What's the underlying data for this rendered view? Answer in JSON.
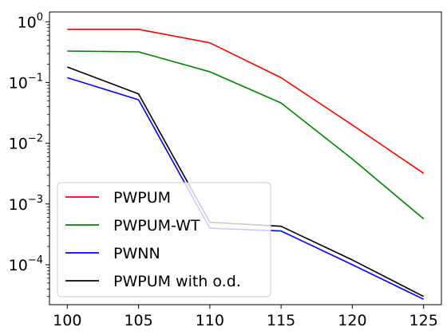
{
  "chart_data": {
    "type": "line",
    "title": "",
    "xlabel": "",
    "ylabel": "",
    "x": [
      100,
      105,
      110,
      115,
      120,
      125
    ],
    "xticks": [
      100,
      105,
      110,
      115,
      120,
      125
    ],
    "xlim": [
      98.75,
      126.25
    ],
    "yscale": "log",
    "yticks": [
      1,
      0.1,
      0.01,
      0.001,
      0.0001
    ],
    "ytick_labels": [
      {
        "base": "10",
        "exp": "0"
      },
      {
        "base": "10",
        "exp": "−1"
      },
      {
        "base": "10",
        "exp": "−2"
      },
      {
        "base": "10",
        "exp": "−3"
      },
      {
        "base": "10",
        "exp": "−4"
      }
    ],
    "ylim": [
      2.2e-05,
      1.45
    ],
    "grid": false,
    "legend_position": "lower-left",
    "series": [
      {
        "name": "PWPUM",
        "color": "#ff0000",
        "values": [
          0.75,
          0.75,
          0.45,
          0.12,
          0.02,
          0.0032
        ]
      },
      {
        "name": "PWPUM-WT",
        "color": "#008000",
        "values": [
          0.33,
          0.32,
          0.15,
          0.046,
          0.0055,
          0.00057
        ]
      },
      {
        "name": "PWNN",
        "color": "#0000ff",
        "values": [
          0.12,
          0.052,
          0.0004,
          0.00036,
          0.0001,
          2.7e-05
        ]
      },
      {
        "name": "PWPUM with o.d.",
        "color": "#000000",
        "values": [
          0.18,
          0.065,
          0.0005,
          0.00043,
          0.00012,
          3e-05
        ]
      }
    ]
  }
}
